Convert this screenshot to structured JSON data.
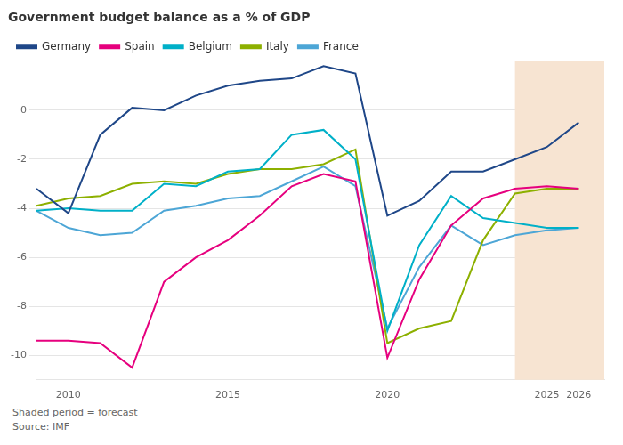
{
  "chart_data": {
    "type": "line",
    "title": "Government budget balance as a % of GDP",
    "annotations": [
      "Shaded period = forecast",
      "Source: IMF"
    ],
    "shaded_span": {
      "start": 2024,
      "end": 2026.8,
      "color": "#f7e4d2"
    },
    "x": [
      2009,
      2010,
      2011,
      2012,
      2013,
      2014,
      2015,
      2016,
      2017,
      2018,
      2019,
      2020,
      2021,
      2022,
      2023,
      2024,
      2025,
      2026
    ],
    "xlim": [
      2009,
      2026.8
    ],
    "xticks": [
      2010,
      2015,
      2020,
      2025,
      2026
    ],
    "ylim": [
      -11,
      2
    ],
    "yticks": [
      0,
      -2,
      -4,
      -6,
      -8,
      -10
    ],
    "grid": "y",
    "legend": "top",
    "series": [
      {
        "name": "Germany",
        "color": "#1f4788",
        "values": [
          -3.2,
          -4.2,
          -1.0,
          0.1,
          0.0,
          0.6,
          1.0,
          1.2,
          1.3,
          1.8,
          1.5,
          -4.3,
          -3.7,
          -2.5,
          -2.5,
          -2.0,
          -1.5,
          -0.5
        ]
      },
      {
        "name": "Spain",
        "color": "#e6007e",
        "values": [
          -9.4,
          -9.4,
          -9.5,
          -10.5,
          -7.0,
          -6.0,
          -5.3,
          -4.3,
          -3.1,
          -2.6,
          -2.9,
          -10.1,
          -6.9,
          -4.7,
          -3.6,
          -3.2,
          -3.1,
          -3.2
        ]
      },
      {
        "name": "Belgium",
        "color": "#00b0c8",
        "values": [
          -4.1,
          -4.0,
          -4.1,
          -4.1,
          -3.0,
          -3.1,
          -2.5,
          -2.4,
          -1.0,
          -0.8,
          -2.0,
          -9.0,
          -5.5,
          -3.5,
          -4.4,
          -4.6,
          -4.8,
          -4.8
        ]
      },
      {
        "name": "Italy",
        "color": "#8db000",
        "values": [
          -3.9,
          -3.6,
          -3.5,
          -3.0,
          -2.9,
          -3.0,
          -2.6,
          -2.4,
          -2.4,
          -2.2,
          -1.6,
          -9.5,
          -8.9,
          -8.6,
          -5.3,
          -3.4,
          -3.2,
          -3.2
        ]
      },
      {
        "name": "France",
        "color": "#4da6d6",
        "values": [
          -4.1,
          -4.8,
          -5.1,
          -5.0,
          -4.1,
          -3.9,
          -3.6,
          -3.5,
          -2.9,
          -2.3,
          -3.1,
          -8.9,
          -6.4,
          -4.7,
          -5.5,
          -5.1,
          -4.9,
          -4.8
        ]
      }
    ]
  }
}
